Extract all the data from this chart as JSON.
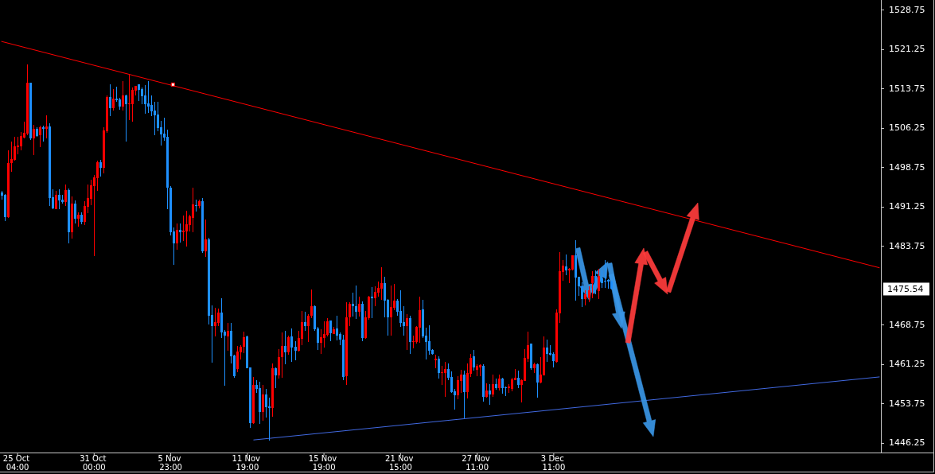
{
  "chart_data": {
    "type": "candlestick",
    "categories": [
      null,
      null,
      null,
      null,
      null,
      "25 Oct 04:00",
      null,
      null,
      null,
      null,
      null,
      null,
      null,
      null,
      null,
      null,
      null,
      null,
      null,
      null,
      null,
      null,
      null,
      null,
      null,
      null,
      null,
      null,
      null,
      "31 Oct 00:00",
      null,
      null,
      null,
      null,
      null,
      null,
      null,
      null,
      null,
      null,
      null,
      null,
      null,
      null,
      null,
      null,
      null,
      null,
      null,
      null,
      null,
      null,
      null,
      "5 Nov 23:00",
      null,
      null,
      null,
      null,
      null,
      null,
      null,
      null,
      null,
      null,
      null,
      null,
      null,
      null,
      null,
      null,
      null,
      null,
      null,
      null,
      null,
      null,
      null,
      "11 Nov 19:00",
      null,
      null,
      null,
      null,
      null,
      null,
      null,
      null,
      null,
      null,
      null,
      null,
      null,
      null,
      null,
      null,
      null,
      null,
      null,
      null,
      null,
      null,
      null,
      "15 Nov 19:00",
      null,
      null,
      null,
      null,
      null,
      null,
      null,
      null,
      null,
      null,
      null,
      null,
      null,
      null,
      null,
      null,
      null,
      null,
      null,
      null,
      null,
      null,
      null,
      "21 Nov 15:00",
      null,
      null,
      null,
      null,
      null,
      null,
      null,
      null,
      null,
      null,
      null,
      null,
      null,
      null,
      null,
      null,
      null,
      null,
      null,
      null,
      null,
      null,
      null,
      "27 Nov 11:00",
      null,
      null,
      null,
      null,
      null,
      null,
      null,
      null,
      null,
      null,
      null,
      null,
      null,
      null,
      null,
      null,
      null,
      null,
      null,
      null,
      null,
      null,
      null,
      "3 Dec 11:00",
      null,
      null,
      null,
      null,
      null,
      null,
      null,
      null,
      null,
      null,
      null,
      null,
      null,
      null,
      null,
      null,
      null,
      null,
      null,
      null,
      null,
      null,
      null,
      null,
      null,
      null,
      null,
      null,
      null,
      null,
      null,
      null,
      null,
      null,
      null,
      null,
      null,
      null,
      null,
      null,
      null,
      null,
      null,
      null,
      null,
      null,
      null,
      null,
      null,
      null,
      null,
      null,
      null,
      null,
      null,
      null,
      null,
      null,
      null,
      null,
      null,
      null,
      null,
      null,
      null,
      null,
      null,
      null,
      null,
      null,
      null,
      null,
      null,
      null,
      null,
      null,
      null,
      null,
      null,
      null,
      null,
      null,
      null,
      null,
      null,
      null,
      null,
      null,
      null,
      null,
      null,
      null,
      null,
      null,
      null,
      null,
      null,
      null,
      null,
      null,
      null,
      null
    ],
    "ohlc": [
      [
        1494.0,
        1494.3,
        1492.5,
        1493.4
      ],
      [
        1493.5,
        1493.6,
        1488.5,
        1489.3
      ],
      [
        1489.3,
        1502.0,
        1489.1,
        1499.5
      ],
      [
        1499.5,
        1503.7,
        1497.9,
        1500.3
      ],
      [
        1500.2,
        1504.6,
        1500.0,
        1502.7
      ],
      [
        1502.6,
        1504.6,
        1501.2,
        1502.9
      ],
      [
        1502.7,
        1505.5,
        1502.0,
        1504.7
      ],
      [
        1504.4,
        1507.4,
        1504.3,
        1505.3
      ],
      [
        1505.1,
        1518.3,
        1504.8,
        1514.9
      ],
      [
        1514.9,
        1514.9,
        1504.0,
        1504.3
      ],
      [
        1504.3,
        1506.8,
        1501.1,
        1506.0
      ],
      [
        1506.1,
        1506.4,
        1504.6,
        1504.7
      ],
      [
        1504.8,
        1506.6,
        1502.6,
        1506.4
      ],
      [
        1506.4,
        1506.7,
        1503.7,
        1506.1
      ],
      [
        1506.1,
        1508.6,
        1504.3,
        1506.5
      ],
      [
        1506.5,
        1507.1,
        1491.4,
        1492.9
      ],
      [
        1493.0,
        1494.6,
        1490.7,
        1490.9
      ],
      [
        1490.8,
        1494.3,
        1490.7,
        1493.5
      ],
      [
        1493.5,
        1494.6,
        1490.7,
        1492.4
      ],
      [
        1492.6,
        1493.5,
        1491.8,
        1492.1
      ],
      [
        1492.1,
        1495.5,
        1491.4,
        1494.4
      ],
      [
        1494.4,
        1494.7,
        1484.3,
        1486.4
      ],
      [
        1486.4,
        1493.2,
        1485.2,
        1491.8
      ],
      [
        1491.8,
        1492.4,
        1488.1,
        1489.0
      ],
      [
        1489.0,
        1490.2,
        1487.5,
        1489.7
      ],
      [
        1489.7,
        1490.2,
        1487.9,
        1488.3
      ],
      [
        1488.3,
        1492.3,
        1487.7,
        1491.4
      ],
      [
        1491.2,
        1495.5,
        1490.0,
        1492.9
      ],
      [
        1492.7,
        1496.4,
        1491.5,
        1495.3
      ],
      [
        1495.2,
        1497.3,
        1481.8,
        1496.8
      ],
      [
        1496.7,
        1500.0,
        1494.3,
        1499.7
      ],
      [
        1499.7,
        1500.2,
        1497.0,
        1498.6
      ],
      [
        1498.6,
        1506.4,
        1497.5,
        1505.8
      ],
      [
        1505.6,
        1512.4,
        1505.3,
        1512.1
      ],
      [
        1512.1,
        1514.6,
        1508.5,
        1510.0
      ],
      [
        1510.0,
        1513.6,
        1509.6,
        1511.8
      ],
      [
        1511.8,
        1514.1,
        1511.2,
        1511.5
      ],
      [
        1511.7,
        1512.0,
        1509.7,
        1510.3
      ],
      [
        1510.3,
        1515.2,
        1509.6,
        1512.4
      ],
      [
        1512.4,
        1512.5,
        1503.6,
        1510.8
      ],
      [
        1510.8,
        1516.5,
        1507.7,
        1510.9
      ],
      [
        1510.8,
        1514.0,
        1507.4,
        1513.5
      ],
      [
        1513.4,
        1514.3,
        1512.4,
        1514.3
      ],
      [
        1514.6,
        1514.6,
        1511.4,
        1513.5
      ],
      [
        1513.6,
        1514.0,
        1510.8,
        1512.3
      ],
      [
        1512.4,
        1514.4,
        1509.0,
        1510.8
      ],
      [
        1510.9,
        1515.2,
        1509.1,
        1510.3
      ],
      [
        1510.6,
        1512.4,
        1508.5,
        1509.4
      ],
      [
        1509.6,
        1511.2,
        1504.9,
        1508.7
      ],
      [
        1508.8,
        1511.2,
        1505.6,
        1506.2
      ],
      [
        1506.4,
        1507.6,
        1502.9,
        1505.0
      ],
      [
        1505.2,
        1508.2,
        1503.8,
        1504.4
      ],
      [
        1504.6,
        1505.9,
        1490.8,
        1494.9
      ],
      [
        1494.9,
        1495.2,
        1485.8,
        1486.4
      ],
      [
        1486.5,
        1487.3,
        1480.1,
        1484.3
      ],
      [
        1484.3,
        1488.0,
        1483.1,
        1486.8
      ],
      [
        1486.8,
        1488.0,
        1484.4,
        1486.4
      ],
      [
        1486.4,
        1489.6,
        1484.7,
        1486.7
      ],
      [
        1486.5,
        1490.5,
        1483.7,
        1487.9
      ],
      [
        1487.7,
        1489.7,
        1486.5,
        1489.4
      ],
      [
        1489.1,
        1494.9,
        1486.4,
        1491.7
      ],
      [
        1491.5,
        1492.6,
        1490.3,
        1491.4
      ],
      [
        1491.4,
        1492.6,
        1490.9,
        1492.3
      ],
      [
        1492.3,
        1492.9,
        1482.4,
        1482.7
      ],
      [
        1482.7,
        1488.8,
        1481.7,
        1485.0
      ],
      [
        1485.0,
        1485.3,
        1468.8,
        1470.5
      ],
      [
        1470.6,
        1472.4,
        1461.5,
        1468.5
      ],
      [
        1468.5,
        1472.0,
        1466.5,
        1469.2
      ],
      [
        1469.1,
        1471.8,
        1468.5,
        1471.1
      ],
      [
        1471.1,
        1473.8,
        1466.2,
        1467.3
      ],
      [
        1467.4,
        1467.7,
        1457.1,
        1466.7
      ],
      [
        1466.5,
        1469.1,
        1463.8,
        1467.6
      ],
      [
        1467.6,
        1469.1,
        1461.4,
        1462.7
      ],
      [
        1462.9,
        1463.0,
        1458.6,
        1458.9
      ],
      [
        1460.3,
        1464.7,
        1459.7,
        1463.6
      ],
      [
        1463.5,
        1464.9,
        1462.1,
        1464.6
      ],
      [
        1464.6,
        1467.4,
        1463.3,
        1466.4
      ],
      [
        1466.5,
        1466.7,
        1460.5,
        1460.5
      ],
      [
        1460.6,
        1460.6,
        1449.1,
        1450.0
      ],
      [
        1450.0,
        1458.8,
        1449.9,
        1457.3
      ],
      [
        1457.3,
        1458.2,
        1455.8,
        1456.5
      ],
      [
        1456.7,
        1457.9,
        1449.9,
        1452.1
      ],
      [
        1452.1,
        1457.3,
        1450.5,
        1455.5
      ],
      [
        1455.5,
        1456.5,
        1451.1,
        1453.0
      ],
      [
        1453.2,
        1454.9,
        1446.7,
        1452.9
      ],
      [
        1452.9,
        1461.4,
        1451.2,
        1460.5
      ],
      [
        1460.5,
        1460.6,
        1456.7,
        1459.1
      ],
      [
        1459.1,
        1464.1,
        1458.5,
        1462.6
      ],
      [
        1462.6,
        1467.3,
        1458.6,
        1464.7
      ],
      [
        1464.7,
        1467.6,
        1461.2,
        1463.5
      ],
      [
        1463.5,
        1466.7,
        1463.0,
        1466.4
      ],
      [
        1466.5,
        1468.0,
        1461.7,
        1464.4
      ],
      [
        1464.6,
        1465.6,
        1462.0,
        1463.8
      ],
      [
        1463.8,
        1467.6,
        1463.6,
        1466.2
      ],
      [
        1466.1,
        1471.4,
        1464.9,
        1469.2
      ],
      [
        1469.2,
        1471.2,
        1467.6,
        1468.5
      ],
      [
        1468.5,
        1470.8,
        1465.5,
        1470.5
      ],
      [
        1470.5,
        1475.5,
        1470.0,
        1472.3
      ],
      [
        1472.3,
        1472.4,
        1467.6,
        1467.9
      ],
      [
        1468.0,
        1468.3,
        1463.9,
        1465.3
      ],
      [
        1465.3,
        1467.9,
        1463.2,
        1466.4
      ],
      [
        1466.2,
        1469.4,
        1464.4,
        1467.0
      ],
      [
        1466.8,
        1470.0,
        1466.5,
        1469.4
      ],
      [
        1469.6,
        1469.6,
        1465.6,
        1467.1
      ],
      [
        1467.0,
        1468.3,
        1466.9,
        1467.9
      ],
      [
        1468.0,
        1470.5,
        1465.8,
        1466.7
      ],
      [
        1467.0,
        1467.3,
        1464.9,
        1465.9
      ],
      [
        1465.9,
        1466.8,
        1458.2,
        1458.8
      ],
      [
        1458.9,
        1473.0,
        1457.3,
        1470.2
      ],
      [
        1470.2,
        1473.0,
        1468.5,
        1472.7
      ],
      [
        1472.7,
        1474.9,
        1470.3,
        1472.3
      ],
      [
        1472.3,
        1476.2,
        1469.9,
        1471.2
      ],
      [
        1471.2,
        1474.1,
        1470.3,
        1472.7
      ],
      [
        1472.7,
        1473.2,
        1465.6,
        1466.2
      ],
      [
        1466.2,
        1471.4,
        1466.1,
        1470.2
      ],
      [
        1470.0,
        1474.2,
        1469.7,
        1474.1
      ],
      [
        1474.1,
        1475.9,
        1470.0,
        1473.8
      ],
      [
        1473.8,
        1476.1,
        1472.3,
        1475.0
      ],
      [
        1474.9,
        1477.0,
        1474.1,
        1475.8
      ],
      [
        1475.6,
        1479.7,
        1473.5,
        1476.7
      ],
      [
        1476.7,
        1477.9,
        1470.2,
        1473.3
      ],
      [
        1473.5,
        1473.6,
        1466.7,
        1470.2
      ],
      [
        1470.2,
        1476.2,
        1466.7,
        1472.1
      ],
      [
        1472.0,
        1476.5,
        1471.5,
        1473.3
      ],
      [
        1473.3,
        1473.6,
        1470.5,
        1471.2
      ],
      [
        1471.4,
        1475.3,
        1468.3,
        1469.1
      ],
      [
        1469.3,
        1472.3,
        1466.7,
        1468.5
      ],
      [
        1468.5,
        1470.8,
        1463.9,
        1470.0
      ],
      [
        1470.0,
        1470.5,
        1463.2,
        1465.5
      ],
      [
        1465.5,
        1466.7,
        1464.3,
        1465.6
      ],
      [
        1465.5,
        1468.5,
        1465.2,
        1468.3
      ],
      [
        1468.2,
        1474.1,
        1465.3,
        1471.5
      ],
      [
        1471.7,
        1473.5,
        1466.2,
        1466.5
      ],
      [
        1466.7,
        1468.2,
        1462.1,
        1465.5
      ],
      [
        1465.6,
        1468.6,
        1463.0,
        1463.8
      ],
      [
        1463.9,
        1464.1,
        1463.0,
        1463.2
      ],
      [
        1462.0,
        1463.0,
        1460.5,
        1462.3
      ],
      [
        1462.3,
        1462.7,
        1458.5,
        1459.5
      ],
      [
        1459.6,
        1460.9,
        1457.3,
        1459.7
      ],
      [
        1459.6,
        1461.7,
        1455.0,
        1460.3
      ],
      [
        1460.3,
        1461.4,
        1458.2,
        1458.6
      ],
      [
        1458.8,
        1459.9,
        1455.8,
        1455.9
      ],
      [
        1456.1,
        1456.5,
        1452.6,
        1455.3
      ],
      [
        1455.3,
        1458.9,
        1454.6,
        1458.2
      ],
      [
        1458.0,
        1460.2,
        1455.8,
        1459.3
      ],
      [
        1459.3,
        1460.0,
        1450.9,
        1455.9
      ],
      [
        1455.9,
        1461.4,
        1454.7,
        1459.6
      ],
      [
        1459.4,
        1463.2,
        1458.8,
        1462.4
      ],
      [
        1462.8,
        1464.0,
        1460.0,
        1460.6
      ],
      [
        1460.2,
        1461.2,
        1458.9,
        1460.9
      ],
      [
        1460.6,
        1461.2,
        1458.9,
        1461.1
      ],
      [
        1460.9,
        1461.2,
        1454.1,
        1455.0
      ],
      [
        1455.0,
        1457.6,
        1454.9,
        1456.2
      ],
      [
        1456.2,
        1457.4,
        1453.5,
        1455.5
      ],
      [
        1455.5,
        1459.3,
        1455.0,
        1457.4
      ],
      [
        1457.4,
        1458.5,
        1456.4,
        1456.7
      ],
      [
        1456.7,
        1459.3,
        1456.2,
        1458.5
      ],
      [
        1458.5,
        1458.6,
        1455.6,
        1456.7
      ],
      [
        1456.8,
        1456.9,
        1455.2,
        1456.7
      ],
      [
        1456.7,
        1457.4,
        1455.8,
        1457.0
      ],
      [
        1456.5,
        1458.6,
        1456.1,
        1458.3
      ],
      [
        1458.2,
        1460.3,
        1458.2,
        1458.6
      ],
      [
        1458.6,
        1460.0,
        1456.7,
        1457.3
      ],
      [
        1457.3,
        1458.3,
        1453.9,
        1458.2
      ],
      [
        1458.0,
        1464.1,
        1458.0,
        1462.4
      ],
      [
        1462.3,
        1467.4,
        1461.7,
        1464.9
      ],
      [
        1465.2,
        1465.2,
        1460.2,
        1460.5
      ],
      [
        1460.5,
        1461.5,
        1459.6,
        1461.2
      ],
      [
        1461.2,
        1461.4,
        1454.9,
        1457.7
      ],
      [
        1457.7,
        1462.6,
        1457.6,
        1459.3
      ],
      [
        1459.1,
        1466.5,
        1459.1,
        1464.4
      ],
      [
        1464.4,
        1465.9,
        1461.7,
        1463.2
      ],
      [
        1463.3,
        1464.9,
        1462.9,
        1463.0
      ],
      [
        1463.2,
        1463.5,
        1460.6,
        1461.8
      ],
      [
        1461.7,
        1471.7,
        1461.5,
        1471.1
      ],
      [
        1470.9,
        1482.6,
        1469.1,
        1479.0
      ],
      [
        1478.8,
        1481.1,
        1477.1,
        1480.0
      ],
      [
        1479.9,
        1482.1,
        1478.2,
        1479.1
      ],
      [
        1479.1,
        1479.6,
        1476.7,
        1479.4
      ],
      [
        1479.3,
        1482.0,
        1479.1,
        1482.0
      ],
      [
        1482.0,
        1484.9,
        1473.3,
        1477.7
      ],
      [
        1477.9,
        1477.9,
        1474.2,
        1476.1
      ],
      [
        1476.1,
        1476.8,
        1472.1,
        1473.6
      ],
      [
        1473.6,
        1475.3,
        1472.4,
        1474.6
      ],
      [
        1473.8,
        1476.1,
        1473.0,
        1475.3
      ],
      [
        1476.6,
        1478.9,
        1473.8,
        1478.0
      ],
      [
        1478.0,
        1479.1,
        1474.6,
        1476.1
      ],
      [
        1475.1,
        1479.4,
        1473.6,
        1478.0
      ],
      [
        1477.6,
        1479.1,
        1475.8,
        1476.6
      ],
      [
        1477.1,
        1481.1,
        1475.8,
        1477.0
      ],
      [
        1477.3,
        1477.4,
        1475.6,
        1477.0
      ],
      [
        1477.0,
        1477.1,
        1475.4,
        1475.54
      ],
      null,
      null,
      null,
      null,
      null,
      null,
      null,
      null,
      null,
      null,
      null,
      null,
      null,
      null,
      null,
      null,
      null,
      null,
      null,
      null,
      null,
      null,
      null,
      null,
      null,
      null,
      null,
      null,
      null,
      null,
      null,
      null,
      null,
      null,
      null,
      null,
      null,
      null,
      null,
      null,
      null,
      null,
      null,
      null,
      null,
      null,
      null,
      null,
      null,
      null,
      null,
      null,
      null,
      null,
      null,
      null,
      null,
      null,
      null,
      null,
      null,
      null,
      null,
      null,
      null,
      null,
      null,
      null,
      null,
      null,
      null,
      null,
      null,
      null,
      null,
      null,
      null,
      null,
      null,
      null,
      null,
      null,
      null,
      null
    ],
    "colors": [
      "#1e90ff",
      "#1e90ff",
      "#ff0000",
      "#ff0000",
      "#ff0000",
      "#ff0000",
      "#ff0000",
      "#ff0000",
      "#ff0000",
      "#1e90ff",
      "#ff0000",
      "#1e90ff",
      "#ff0000",
      "#1e90ff",
      "#ff0000",
      "#1e90ff",
      "#1e90ff",
      "#ff0000",
      "#1e90ff",
      "#1e90ff",
      "#ff0000",
      "#1e90ff",
      "#ff0000",
      "#1e90ff",
      "#ff0000",
      "#1e90ff",
      "#ff0000",
      "#ff0000",
      "#ff0000",
      "#ff0000",
      "#ff0000",
      "#1e90ff",
      "#ff0000",
      "#ff0000",
      "#1e90ff",
      "#ff0000",
      "#1e90ff",
      "#1e90ff",
      "#ff0000",
      "#1e90ff",
      "#ff0000",
      "#ff0000",
      "#ff0000",
      "#1e90ff",
      "#1e90ff",
      "#1e90ff",
      "#1e90ff",
      "#1e90ff",
      "#1e90ff",
      "#1e90ff",
      "#1e90ff",
      "#1e90ff",
      "#1e90ff",
      "#1e90ff",
      "#1e90ff",
      "#ff0000",
      "#1e90ff",
      "#ff0000",
      "#ff0000",
      "#ff0000",
      "#ff0000",
      "#1e90ff",
      "#ff0000",
      "#1e90ff",
      "#ff0000",
      "#1e90ff",
      "#1e90ff",
      "#ff0000",
      "#ff0000",
      "#1e90ff",
      "#1e90ff",
      "#ff0000",
      "#1e90ff",
      "#1e90ff",
      "#ff0000",
      "#ff0000",
      "#ff0000",
      "#1e90ff",
      "#1e90ff",
      "#ff0000",
      "#1e90ff",
      "#1e90ff",
      "#ff0000",
      "#1e90ff",
      "#1e90ff",
      "#ff0000",
      "#1e90ff",
      "#ff0000",
      "#ff0000",
      "#1e90ff",
      "#ff0000",
      "#1e90ff",
      "#1e90ff",
      "#ff0000",
      "#ff0000",
      "#1e90ff",
      "#ff0000",
      "#ff0000",
      "#1e90ff",
      "#1e90ff",
      "#ff0000",
      "#ff0000",
      "#ff0000",
      "#1e90ff",
      "#ff0000",
      "#1e90ff",
      "#1e90ff",
      "#1e90ff",
      "#ff0000",
      "#ff0000",
      "#1e90ff",
      "#1e90ff",
      "#ff0000",
      "#1e90ff",
      "#ff0000",
      "#ff0000",
      "#1e90ff",
      "#ff0000",
      "#ff0000",
      "#ff0000",
      "#1e90ff",
      "#1e90ff",
      "#ff0000",
      "#ff0000",
      "#1e90ff",
      "#1e90ff",
      "#1e90ff",
      "#ff0000",
      "#1e90ff",
      "#ff0000",
      "#ff0000",
      "#ff0000",
      "#1e90ff",
      "#1e90ff",
      "#1e90ff",
      "#1e90ff",
      "#ff0000",
      "#1e90ff",
      "#ff0000",
      "#ff0000",
      "#1e90ff",
      "#1e90ff",
      "#1e90ff",
      "#ff0000",
      "#ff0000",
      "#1e90ff",
      "#ff0000",
      "#ff0000",
      "#1e90ff",
      "#ff0000",
      "#ff0000",
      "#1e90ff",
      "#ff0000",
      "#1e90ff",
      "#ff0000",
      "#1e90ff",
      "#ff0000",
      "#1e90ff",
      "#1e90ff",
      "#ff0000",
      "#ff0000",
      "#ff0000",
      "#1e90ff",
      "#ff0000",
      "#ff0000",
      "#ff0000",
      "#1e90ff",
      "#ff0000",
      "#1e90ff",
      "#ff0000",
      "#ff0000",
      "#1e90ff",
      "#1e90ff",
      "#1e90ff",
      "#ff0000",
      "#ff0000",
      "#ff0000",
      "#1e90ff",
      "#ff0000",
      "#ff0000",
      "#1e90ff",
      "#1e90ff",
      "#1e90ff",
      "#ff0000",
      "#ff0000",
      "#ff0000",
      "#1e90ff",
      "#ff0000",
      "#1e90ff",
      "#1e90ff",
      "#1e90ff",
      "#1e90ff",
      null,
      null,
      null,
      null,
      null,
      null,
      null,
      null,
      null,
      null,
      null,
      null,
      null,
      null,
      null,
      null,
      null,
      null,
      null,
      null,
      null,
      null,
      null,
      null,
      null,
      null,
      null,
      null,
      null,
      null,
      null,
      null,
      null,
      null,
      null,
      null,
      null,
      null,
      null,
      null,
      null,
      null,
      null,
      null,
      null,
      null,
      null,
      null,
      null,
      null,
      null,
      null,
      null,
      null,
      null,
      null,
      null,
      null,
      null,
      null,
      null,
      null,
      null,
      null,
      null,
      null,
      null,
      null,
      null,
      null,
      null,
      null,
      null,
      null,
      null,
      null,
      null,
      null,
      null,
      null,
      null,
      null,
      null,
      null
    ],
    "series": [
      {
        "type": "line",
        "color": "#ff0000",
        "values": [
          1522.7,
          null,
          null,
          null,
          null,
          null,
          null,
          null,
          null,
          null,
          null,
          null,
          null,
          null,
          null,
          null,
          null,
          null,
          null,
          null,
          null,
          null,
          null,
          null,
          null,
          null,
          null,
          null,
          null,
          null,
          null,
          null,
          null,
          null,
          null,
          null,
          null,
          null,
          null,
          null,
          null,
          null,
          null,
          null,
          null,
          null,
          null,
          null,
          null,
          null,
          null,
          null,
          null,
          null,
          null,
          null,
          null,
          null,
          null,
          null,
          null,
          null,
          null,
          null,
          null,
          null,
          null,
          null,
          null,
          null,
          null,
          null,
          null,
          null,
          null,
          null,
          null,
          null,
          null,
          null,
          null,
          null,
          null,
          null,
          null,
          null,
          null,
          null,
          null,
          null,
          null,
          null,
          null,
          null,
          null,
          null,
          null,
          null,
          null,
          null,
          null,
          null,
          null,
          null,
          null,
          null,
          null,
          null,
          null,
          null,
          null,
          null,
          null,
          null,
          null,
          null,
          null,
          null,
          null,
          null,
          null,
          null,
          null,
          null,
          null,
          null,
          null,
          null,
          null,
          null,
          null,
          null,
          null,
          null,
          null,
          null,
          null,
          null,
          null,
          null,
          null,
          null,
          null,
          null,
          null,
          null,
          null,
          null,
          null,
          null,
          null,
          null,
          null,
          null,
          null,
          null,
          null,
          null,
          null,
          null,
          null,
          null,
          null,
          null,
          null,
          null,
          null,
          null,
          null,
          null,
          null,
          null,
          null,
          null,
          null,
          null,
          null,
          null,
          null,
          null,
          null,
          null,
          null,
          null,
          null,
          null,
          null,
          null,
          null,
          null,
          null,
          null,
          null,
          null,
          null,
          null,
          null,
          null,
          null,
          null,
          null,
          null,
          null,
          null,
          null,
          null,
          null,
          null,
          null,
          null,
          null,
          null,
          null,
          null,
          null,
          null,
          null,
          null,
          null,
          null,
          null,
          null,
          null,
          null,
          null,
          null,
          null,
          null,
          null,
          null,
          null,
          null,
          null,
          null,
          null,
          null,
          null,
          null,
          null,
          null,
          null,
          null,
          null,
          null,
          null,
          null,
          null,
          null,
          null,
          null,
          null,
          null,
          null,
          null,
          null,
          null,
          null,
          null,
          null,
          null,
          null,
          null,
          null,
          null,
          null,
          null,
          null,
          null,
          null,
          null,
          null,
          null,
          null,
          null,
          null,
          1479.6
        ]
      },
      {
        "type": "line",
        "color": "#4169e1",
        "values": [
          null,
          null,
          null,
          null,
          null,
          null,
          null,
          null,
          null,
          null,
          null,
          null,
          null,
          null,
          null,
          null,
          null,
          null,
          null,
          null,
          null,
          null,
          null,
          null,
          null,
          null,
          null,
          null,
          null,
          null,
          null,
          null,
          null,
          null,
          null,
          null,
          null,
          null,
          null,
          null,
          null,
          null,
          null,
          null,
          null,
          null,
          null,
          null,
          null,
          null,
          null,
          null,
          null,
          null,
          null,
          null,
          null,
          null,
          null,
          null,
          null,
          null,
          null,
          null,
          null,
          null,
          null,
          null,
          null,
          null,
          null,
          null,
          null,
          null,
          null,
          null,
          null,
          null,
          null,
          1446.8,
          null,
          null,
          null,
          null,
          null,
          null,
          null,
          null,
          null,
          null,
          null,
          null,
          null,
          null,
          null,
          null,
          null,
          null,
          null,
          null,
          null,
          null,
          null,
          null,
          null,
          null,
          null,
          null,
          null,
          null,
          null,
          null,
          null,
          null,
          null,
          null,
          null,
          null,
          null,
          null,
          null,
          null,
          null,
          null,
          null,
          null,
          null,
          null,
          null,
          null,
          null,
          null,
          null,
          null,
          null,
          null,
          null,
          null,
          null,
          null,
          null,
          null,
          null,
          null,
          null,
          null,
          null,
          null,
          null,
          null,
          null,
          null,
          null,
          null,
          null,
          null,
          null,
          null,
          null,
          null,
          null,
          null,
          null,
          null,
          null,
          null,
          null,
          null,
          null,
          null,
          null,
          null,
          null,
          null,
          null,
          null,
          null,
          null,
          null,
          null,
          null,
          null,
          null,
          null,
          null,
          null,
          null,
          null,
          null,
          null,
          null,
          null,
          null,
          null,
          null,
          null,
          null,
          null,
          null,
          null,
          null,
          null,
          null,
          null,
          null,
          null,
          null,
          null,
          null,
          null,
          null,
          null,
          null,
          null,
          null,
          null,
          null,
          null,
          null,
          null,
          null,
          null,
          null,
          null,
          null,
          null,
          null,
          null,
          null,
          null,
          null,
          null,
          null,
          null,
          null,
          null,
          null,
          null,
          null,
          null,
          null,
          null,
          null,
          null,
          null,
          null,
          null,
          null,
          null,
          null,
          null,
          null,
          null,
          null,
          null,
          null,
          null,
          null,
          null,
          null,
          null,
          null,
          null,
          null,
          null,
          null,
          null,
          null,
          null,
          null,
          null,
          null,
          null,
          null,
          null,
          1458.8
        ]
      }
    ],
    "ylim": [
      1444.4,
      1530.6
    ],
    "yticks": [
      1446.25,
      1453.75,
      1461.25,
      1468.75,
      1483.75,
      1491.25,
      1498.75,
      1506.25,
      1513.75,
      1521.25,
      1528.75
    ],
    "annotations": [
      "1475.54"
    ]
  }
}
